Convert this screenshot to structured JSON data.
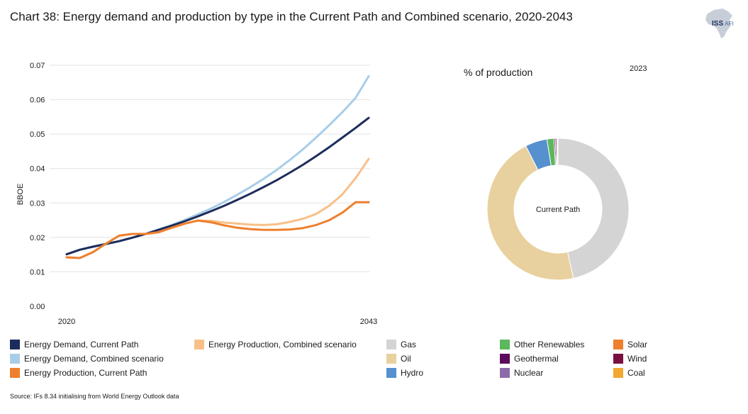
{
  "title": "Chart 38: Energy demand and production by type in the Current Path and Combined scenario, 2020-2043",
  "logo": {
    "text": "ISS",
    "suffix": "AFI"
  },
  "source": "Source: IFs 8.34 initialising from World Energy Outlook data",
  "chart_data": [
    {
      "type": "line",
      "ylabel": "BBOE",
      "xlabel": "",
      "ylim": [
        0,
        0.07
      ],
      "yticks": [
        0,
        0.01,
        0.02,
        0.03,
        0.04,
        0.05,
        0.06,
        0.07
      ],
      "ytick_labels": [
        "0.00",
        "0.01",
        "0.02",
        "0.03",
        "0.04",
        "0.05",
        "0.06",
        "0.07"
      ],
      "xlim": [
        2020,
        2043
      ],
      "xtick_labels": [
        "2020",
        "2043"
      ],
      "x": [
        2020,
        2021,
        2022,
        2023,
        2024,
        2025,
        2026,
        2027,
        2028,
        2029,
        2030,
        2031,
        2032,
        2033,
        2034,
        2035,
        2036,
        2037,
        2038,
        2039,
        2040,
        2041,
        2042,
        2043
      ],
      "series": [
        {
          "name": "Energy Demand, Combined scenario",
          "color": "#a8cde8",
          "values": [
            0.0151,
            0.0164,
            0.0173,
            0.0181,
            0.0189,
            0.0199,
            0.021,
            0.0223,
            0.0236,
            0.0251,
            0.0267,
            0.0284,
            0.0303,
            0.0324,
            0.0346,
            0.037,
            0.0396,
            0.0425,
            0.0456,
            0.049,
            0.0526,
            0.0564,
            0.0605,
            0.0668
          ]
        },
        {
          "name": "Energy Demand, Current Path",
          "color": "#1c2c5c",
          "values": [
            0.0151,
            0.0164,
            0.0173,
            0.0181,
            0.0189,
            0.0199,
            0.021,
            0.0222,
            0.0234,
            0.0247,
            0.0261,
            0.0276,
            0.0292,
            0.0309,
            0.0327,
            0.0346,
            0.0366,
            0.0388,
            0.0411,
            0.0436,
            0.0462,
            0.049,
            0.0518,
            0.0547
          ]
        },
        {
          "name": "Energy Production, Combined scenario",
          "color": "#f8c088",
          "values": [
            0.0142,
            0.014,
            0.0157,
            0.0182,
            0.0205,
            0.021,
            0.021,
            0.0215,
            0.0228,
            0.024,
            0.0249,
            0.0248,
            0.0243,
            0.024,
            0.0237,
            0.0236,
            0.0238,
            0.0245,
            0.0254,
            0.0268,
            0.0292,
            0.0325,
            0.0372,
            0.0428
          ]
        },
        {
          "name": "Energy Production, Current Path",
          "color": "#ee7f2d",
          "values": [
            0.0142,
            0.014,
            0.0157,
            0.0182,
            0.0205,
            0.021,
            0.021,
            0.0215,
            0.0228,
            0.024,
            0.0249,
            0.0244,
            0.0235,
            0.0228,
            0.0224,
            0.0222,
            0.0222,
            0.0223,
            0.0227,
            0.0236,
            0.025,
            0.0272,
            0.0302,
            0.0302
          ]
        }
      ]
    },
    {
      "type": "pie",
      "subtitle": "% of production",
      "year": "2023",
      "center_label": "Current Path",
      "slices": [
        {
          "name": "Gas",
          "value": 46.5,
          "color": "#d4d4d4"
        },
        {
          "name": "Oil",
          "value": 46.0,
          "color": "#e8d19f"
        },
        {
          "name": "Hydro",
          "value": 5.0,
          "color": "#5590cf"
        },
        {
          "name": "Other Renewables",
          "value": 1.6,
          "color": "#5cb85c"
        },
        {
          "name": "Geothermal",
          "value": 0.3,
          "color": "#5c0a5c"
        },
        {
          "name": "Wind",
          "value": 0.3,
          "color": "#7a1040"
        },
        {
          "name": "Nuclear",
          "value": 0.2,
          "color": "#8f6aa8"
        },
        {
          "name": "Solar",
          "value": 0.1,
          "color": "#ee7f2d"
        }
      ]
    }
  ],
  "legend": [
    {
      "label": "Energy Demand, Current Path",
      "color": "#1c2c5c"
    },
    {
      "label": "Energy Demand, Combined scenario",
      "color": "#a8cde8"
    },
    {
      "label": "Energy Production, Current Path",
      "color": "#ee7f2d"
    },
    {
      "label": "Energy Production, Combined scenario",
      "color": "#f8c088"
    },
    {
      "label": "Gas",
      "color": "#d4d4d4"
    },
    {
      "label": "Oil",
      "color": "#e8d19f"
    },
    {
      "label": "Hydro",
      "color": "#5590cf"
    },
    {
      "label": "Other Renewables",
      "color": "#5cb85c"
    },
    {
      "label": "Geothermal",
      "color": "#5c0a5c"
    },
    {
      "label": "Nuclear",
      "color": "#8f6aa8"
    },
    {
      "label": "Solar",
      "color": "#ee7f2d"
    },
    {
      "label": "Wind",
      "color": "#7a1040"
    },
    {
      "label": "Coal",
      "color": "#f0a830"
    }
  ]
}
